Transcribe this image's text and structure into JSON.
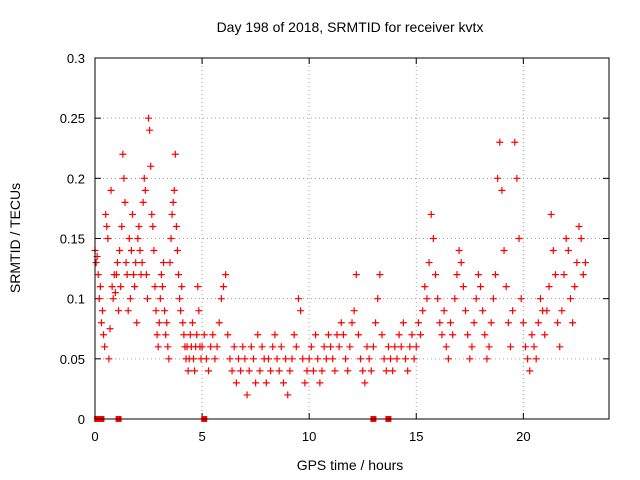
{
  "chart_data": {
    "type": "scatter",
    "title": "Day 198 of 2018, SRMTID for receiver kvtx",
    "xlabel": "GPS time / hours",
    "ylabel": "SRMTID / TECUs",
    "xlim": [
      0,
      24
    ],
    "ylim": [
      0,
      0.3
    ],
    "x_ticks": [
      0,
      5,
      10,
      15,
      20
    ],
    "x_tick_labels": [
      "0",
      "5",
      "10",
      "15",
      "20"
    ],
    "y_ticks": [
      0,
      0.05,
      0.1,
      0.15,
      0.2,
      0.25,
      0.3
    ],
    "y_tick_labels": [
      "0",
      "0.05",
      "0.1",
      "0.15",
      "0.2",
      "0.25",
      "0.3"
    ],
    "grid": true,
    "marker": "+",
    "color": "#ff0000",
    "series": [
      {
        "name": "SRMTID",
        "points": [
          [
            0.0,
            0.14
          ],
          [
            0.05,
            0.13
          ],
          [
            0.1,
            0.135
          ],
          [
            0.15,
            0.12
          ],
          [
            0.2,
            0.1
          ],
          [
            0.25,
            0.11
          ],
          [
            0.3,
            0.08
          ],
          [
            0.35,
            0.09
          ],
          [
            0.4,
            0.07
          ],
          [
            0.45,
            0.06
          ],
          [
            0.5,
            0.17
          ],
          [
            0.55,
            0.16
          ],
          [
            0.6,
            0.15
          ],
          [
            0.65,
            0.05
          ],
          [
            0.7,
            0.075
          ],
          [
            0.75,
            0.19
          ],
          [
            0.8,
            0.11
          ],
          [
            0.85,
            0.1
          ],
          [
            0.9,
            0.12
          ],
          [
            0.95,
            0.105
          ],
          [
            1.0,
            0.12
          ],
          [
            1.05,
            0.13
          ],
          [
            1.1,
            0.09
          ],
          [
            1.15,
            0.14
          ],
          [
            1.2,
            0.11
          ],
          [
            1.25,
            0.16
          ],
          [
            1.3,
            0.22
          ],
          [
            1.35,
            0.2
          ],
          [
            1.4,
            0.18
          ],
          [
            1.45,
            0.13
          ],
          [
            1.5,
            0.12
          ],
          [
            1.55,
            0.09
          ],
          [
            1.6,
            0.15
          ],
          [
            1.65,
            0.1
          ],
          [
            1.7,
            0.14
          ],
          [
            1.75,
            0.17
          ],
          [
            1.8,
            0.12
          ],
          [
            1.85,
            0.11
          ],
          [
            1.9,
            0.13
          ],
          [
            1.95,
            0.08
          ],
          [
            2.0,
            0.15
          ],
          [
            2.05,
            0.16
          ],
          [
            2.1,
            0.14
          ],
          [
            2.15,
            0.12
          ],
          [
            2.2,
            0.13
          ],
          [
            2.25,
            0.18
          ],
          [
            2.3,
            0.2
          ],
          [
            2.35,
            0.19
          ],
          [
            2.4,
            0.12
          ],
          [
            2.45,
            0.1
          ],
          [
            2.5,
            0.25
          ],
          [
            2.55,
            0.24
          ],
          [
            2.6,
            0.21
          ],
          [
            2.65,
            0.17
          ],
          [
            2.7,
            0.16
          ],
          [
            2.75,
            0.14
          ],
          [
            2.8,
            0.11
          ],
          [
            2.85,
            0.09
          ],
          [
            2.9,
            0.07
          ],
          [
            2.95,
            0.06
          ],
          [
            3.0,
            0.08
          ],
          [
            3.05,
            0.1
          ],
          [
            3.1,
            0.12
          ],
          [
            3.15,
            0.11
          ],
          [
            3.2,
            0.13
          ],
          [
            3.25,
            0.09
          ],
          [
            3.3,
            0.07
          ],
          [
            3.35,
            0.08
          ],
          [
            3.4,
            0.06
          ],
          [
            3.45,
            0.05
          ],
          [
            3.5,
            0.13
          ],
          [
            3.55,
            0.15
          ],
          [
            3.6,
            0.17
          ],
          [
            3.65,
            0.18
          ],
          [
            3.7,
            0.19
          ],
          [
            3.75,
            0.22
          ],
          [
            3.8,
            0.16
          ],
          [
            3.85,
            0.14
          ],
          [
            3.9,
            0.12
          ],
          [
            3.95,
            0.1
          ],
          [
            4.0,
            0.09
          ],
          [
            4.05,
            0.11
          ],
          [
            4.1,
            0.08
          ],
          [
            4.15,
            0.07
          ],
          [
            4.2,
            0.06
          ],
          [
            4.25,
            0.05
          ],
          [
            4.3,
            0.06
          ],
          [
            4.35,
            0.04
          ],
          [
            4.4,
            0.05
          ],
          [
            4.45,
            0.07
          ],
          [
            4.5,
            0.06
          ],
          [
            4.55,
            0.08
          ],
          [
            4.6,
            0.05
          ],
          [
            4.65,
            0.04
          ],
          [
            4.7,
            0.06
          ],
          [
            4.75,
            0.07
          ],
          [
            4.8,
            0.11
          ],
          [
            4.85,
            0.09
          ],
          [
            4.9,
            0.06
          ],
          [
            4.95,
            0.05
          ],
          [
            5.0,
            0.06
          ],
          [
            5.1,
            0.07
          ],
          [
            5.2,
            0.05
          ],
          [
            5.3,
            0.04
          ],
          [
            5.4,
            0.06
          ],
          [
            5.5,
            0.07
          ],
          [
            5.6,
            0.05
          ],
          [
            5.7,
            0.06
          ],
          [
            5.8,
            0.08
          ],
          [
            5.9,
            0.1
          ],
          [
            6.0,
            0.11
          ],
          [
            6.1,
            0.12
          ],
          [
            6.2,
            0.07
          ],
          [
            6.3,
            0.05
          ],
          [
            6.4,
            0.04
          ],
          [
            6.5,
            0.06
          ],
          [
            6.6,
            0.03
          ],
          [
            6.7,
            0.05
          ],
          [
            6.8,
            0.04
          ],
          [
            6.9,
            0.06
          ],
          [
            7.0,
            0.05
          ],
          [
            7.1,
            0.02
          ],
          [
            7.2,
            0.04
          ],
          [
            7.3,
            0.06
          ],
          [
            7.4,
            0.05
          ],
          [
            7.5,
            0.03
          ],
          [
            7.6,
            0.07
          ],
          [
            7.7,
            0.04
          ],
          [
            7.8,
            0.06
          ],
          [
            7.9,
            0.05
          ],
          [
            8.0,
            0.03
          ],
          [
            8.1,
            0.05
          ],
          [
            8.2,
            0.04
          ],
          [
            8.3,
            0.06
          ],
          [
            8.4,
            0.07
          ],
          [
            8.5,
            0.05
          ],
          [
            8.6,
            0.04
          ],
          [
            8.7,
            0.06
          ],
          [
            8.8,
            0.03
          ],
          [
            8.9,
            0.05
          ],
          [
            9.0,
            0.02
          ],
          [
            9.1,
            0.04
          ],
          [
            9.2,
            0.05
          ],
          [
            9.3,
            0.07
          ],
          [
            9.4,
            0.06
          ],
          [
            9.5,
            0.1
          ],
          [
            9.6,
            0.09
          ],
          [
            9.7,
            0.05
          ],
          [
            9.8,
            0.03
          ],
          [
            9.9,
            0.04
          ],
          [
            10.0,
            0.05
          ],
          [
            10.1,
            0.06
          ],
          [
            10.2,
            0.04
          ],
          [
            10.3,
            0.07
          ],
          [
            10.4,
            0.05
          ],
          [
            10.5,
            0.03
          ],
          [
            10.6,
            0.04
          ],
          [
            10.7,
            0.06
          ],
          [
            10.8,
            0.05
          ],
          [
            10.9,
            0.07
          ],
          [
            11.0,
            0.06
          ],
          [
            11.1,
            0.05
          ],
          [
            11.2,
            0.04
          ],
          [
            11.3,
            0.07
          ],
          [
            11.4,
            0.06
          ],
          [
            11.5,
            0.08
          ],
          [
            11.6,
            0.07
          ],
          [
            11.7,
            0.05
          ],
          [
            11.8,
            0.04
          ],
          [
            11.9,
            0.06
          ],
          [
            12.0,
            0.08
          ],
          [
            12.1,
            0.09
          ],
          [
            12.2,
            0.12
          ],
          [
            12.3,
            0.07
          ],
          [
            12.4,
            0.05
          ],
          [
            12.5,
            0.04
          ],
          [
            12.6,
            0.03
          ],
          [
            12.7,
            0.06
          ],
          [
            12.8,
            0.05
          ],
          [
            12.9,
            0.04
          ],
          [
            13.0,
            0.06
          ],
          [
            13.1,
            0.08
          ],
          [
            13.2,
            0.1
          ],
          [
            13.3,
            0.12
          ],
          [
            13.4,
            0.07
          ],
          [
            13.5,
            0.05
          ],
          [
            13.6,
            0.04
          ],
          [
            13.7,
            0.06
          ],
          [
            13.8,
            0.05
          ],
          [
            13.9,
            0.04
          ],
          [
            14.0,
            0.06
          ],
          [
            14.1,
            0.05
          ],
          [
            14.2,
            0.07
          ],
          [
            14.3,
            0.06
          ],
          [
            14.4,
            0.08
          ],
          [
            14.5,
            0.05
          ],
          [
            14.6,
            0.04
          ],
          [
            14.7,
            0.06
          ],
          [
            14.8,
            0.07
          ],
          [
            14.9,
            0.05
          ],
          [
            15.0,
            0.06
          ],
          [
            15.1,
            0.08
          ],
          [
            15.2,
            0.07
          ],
          [
            15.3,
            0.09
          ],
          [
            15.4,
            0.11
          ],
          [
            15.5,
            0.1
          ],
          [
            15.6,
            0.13
          ],
          [
            15.7,
            0.17
          ],
          [
            15.8,
            0.15
          ],
          [
            15.9,
            0.12
          ],
          [
            16.0,
            0.1
          ],
          [
            16.1,
            0.08
          ],
          [
            16.2,
            0.07
          ],
          [
            16.3,
            0.09
          ],
          [
            16.4,
            0.06
          ],
          [
            16.5,
            0.05
          ],
          [
            16.6,
            0.08
          ],
          [
            16.7,
            0.07
          ],
          [
            16.8,
            0.1
          ],
          [
            16.9,
            0.12
          ],
          [
            17.0,
            0.14
          ],
          [
            17.1,
            0.13
          ],
          [
            17.2,
            0.11
          ],
          [
            17.3,
            0.09
          ],
          [
            17.4,
            0.07
          ],
          [
            17.5,
            0.05
          ],
          [
            17.6,
            0.06
          ],
          [
            17.7,
            0.08
          ],
          [
            17.8,
            0.1
          ],
          [
            17.9,
            0.12
          ],
          [
            18.0,
            0.11
          ],
          [
            18.1,
            0.09
          ],
          [
            18.2,
            0.07
          ],
          [
            18.3,
            0.05
          ],
          [
            18.4,
            0.06
          ],
          [
            18.5,
            0.08
          ],
          [
            18.6,
            0.1
          ],
          [
            18.7,
            0.12
          ],
          [
            18.8,
            0.2
          ],
          [
            18.9,
            0.23
          ],
          [
            19.0,
            0.19
          ],
          [
            19.1,
            0.14
          ],
          [
            19.2,
            0.11
          ],
          [
            19.3,
            0.08
          ],
          [
            19.4,
            0.06
          ],
          [
            19.5,
            0.09
          ],
          [
            19.6,
            0.23
          ],
          [
            19.7,
            0.2
          ],
          [
            19.8,
            0.15
          ],
          [
            19.9,
            0.1
          ],
          [
            20.0,
            0.08
          ],
          [
            20.1,
            0.06
          ],
          [
            20.2,
            0.05
          ],
          [
            20.3,
            0.04
          ],
          [
            20.4,
            0.07
          ],
          [
            20.5,
            0.06
          ],
          [
            20.6,
            0.05
          ],
          [
            20.7,
            0.08
          ],
          [
            20.8,
            0.1
          ],
          [
            20.9,
            0.09
          ],
          [
            21.0,
            0.07
          ],
          [
            21.1,
            0.09
          ],
          [
            21.2,
            0.11
          ],
          [
            21.3,
            0.17
          ],
          [
            21.4,
            0.14
          ],
          [
            21.5,
            0.12
          ],
          [
            21.6,
            0.08
          ],
          [
            21.7,
            0.06
          ],
          [
            21.8,
            0.09
          ],
          [
            21.9,
            0.12
          ],
          [
            22.0,
            0.15
          ],
          [
            22.1,
            0.14
          ],
          [
            22.2,
            0.1
          ],
          [
            22.3,
            0.08
          ],
          [
            22.4,
            0.11
          ],
          [
            22.5,
            0.13
          ],
          [
            22.6,
            0.16
          ],
          [
            22.7,
            0.15
          ],
          [
            22.8,
            0.12
          ],
          [
            22.9,
            0.13
          ]
        ]
      }
    ],
    "baseline_points": [
      [
        0.1,
        0.0
      ],
      [
        0.2,
        0.0
      ],
      [
        0.3,
        0.0
      ],
      [
        1.1,
        0.0
      ],
      [
        5.1,
        0.0
      ],
      [
        13.0,
        0.0
      ],
      [
        13.7,
        0.0
      ]
    ]
  }
}
